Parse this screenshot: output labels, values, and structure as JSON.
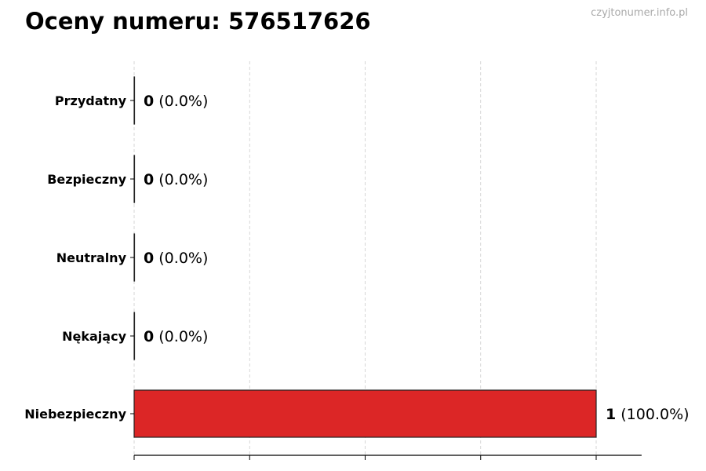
{
  "chart_data": {
    "type": "bar",
    "orientation": "horizontal",
    "title": "Oceny numeru: 576517626",
    "categories": [
      "Przydatny",
      "Bezpieczny",
      "Neutralny",
      "Nękający",
      "Niebezpieczny"
    ],
    "values": [
      0,
      0,
      0,
      0,
      1
    ],
    "percentages": [
      "0.0%",
      "0.0%",
      "0.0%",
      "0.0%",
      "100.0%"
    ],
    "data_labels": [
      {
        "count": "0",
        "pct": "(0.0%)"
      },
      {
        "count": "0",
        "pct": "(0.0%)"
      },
      {
        "count": "0",
        "pct": "(0.0%)"
      },
      {
        "count": "0",
        "pct": "(0.0%)"
      },
      {
        "count": "1",
        "pct": "(100.0%)"
      }
    ],
    "colors": [
      "#dc2626",
      "#dc2626",
      "#dc2626",
      "#dc2626",
      "#dc2626"
    ],
    "xlim": [
      0,
      1.1
    ],
    "xticks": [
      0,
      0.25,
      0.5,
      0.75,
      1.0
    ],
    "xtick_labels_shown": false,
    "grid": "x dashed",
    "xlabel": "",
    "ylabel": ""
  },
  "watermark": "czyjtonumer.info.pl"
}
